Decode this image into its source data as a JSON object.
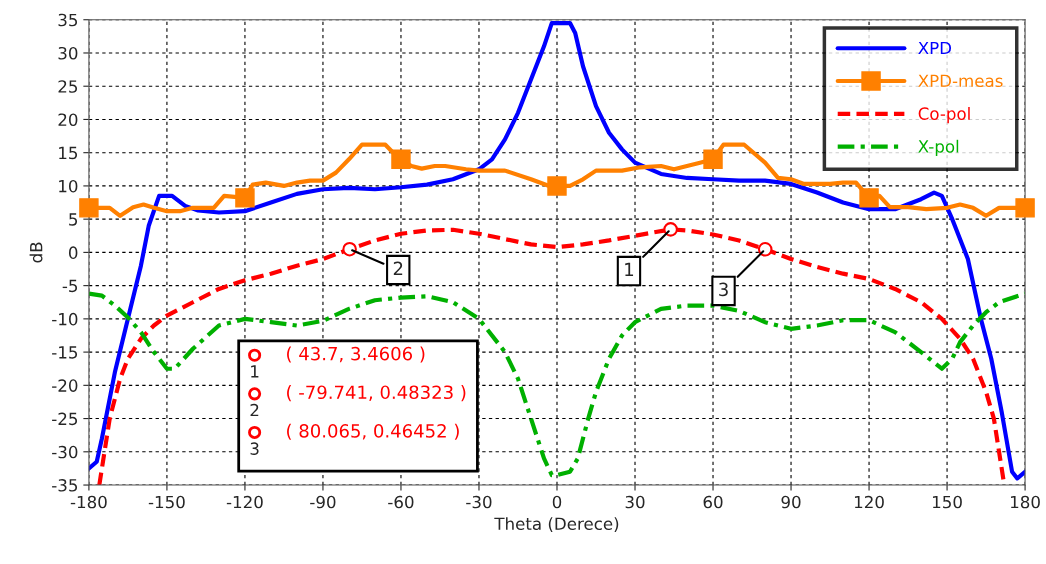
{
  "chart_data": {
    "type": "line",
    "xlabel": "Theta (Derece)",
    "ylabel": "dB",
    "xlim": [
      -180,
      180
    ],
    "xticks": [
      -180,
      -150,
      -120,
      -90,
      -60,
      -30,
      0,
      30,
      60,
      90,
      120,
      150,
      180
    ],
    "ylim": [
      -35,
      35
    ],
    "yticks": [
      -35,
      -30,
      -25,
      -20,
      -15,
      -10,
      -5,
      0,
      5,
      10,
      15,
      20,
      25,
      30,
      35
    ],
    "grid": true,
    "legend": "top right",
    "series": [
      {
        "name": "XPD",
        "color": "#0000ff",
        "line_style": "solid",
        "marker": "none",
        "x": [
          -180,
          -177,
          -175,
          -170,
          -165,
          -160,
          -157,
          -153,
          -148,
          -143,
          -138,
          -130,
          -120,
          -110,
          -100,
          -90,
          -80,
          -70,
          -60,
          -50,
          -40,
          -30,
          -25,
          -20,
          -15,
          -10,
          -5,
          -2,
          5,
          7,
          10,
          15,
          20,
          25,
          30,
          40,
          50,
          60,
          70,
          80,
          90,
          100,
          110,
          120,
          130,
          140,
          145,
          148,
          152,
          158,
          163,
          167,
          171,
          175,
          177,
          180
        ],
        "values": [
          -32.5,
          -31.5,
          -28,
          -18,
          -10,
          -2,
          4,
          8.5,
          8.5,
          7,
          6.3,
          6,
          6.2,
          7.5,
          8.8,
          9.5,
          9.7,
          9.5,
          9.8,
          10.2,
          11,
          12.5,
          14,
          17,
          21,
          26,
          31,
          34.5,
          34.5,
          33,
          28,
          22,
          18,
          15.5,
          13.5,
          11.8,
          11.2,
          11,
          10.8,
          10.8,
          10.3,
          9,
          7.5,
          6.5,
          6.5,
          8,
          9,
          8.5,
          5,
          -1,
          -10,
          -16,
          -24,
          -33,
          -34,
          -33
        ]
      },
      {
        "name": "XPD-meas",
        "color": "#ff8000",
        "line_style": "solid",
        "marker": "none",
        "x": [
          -180,
          -172,
          -168,
          -163,
          -159,
          -155,
          -150,
          -145,
          -140,
          -132,
          -128,
          -120,
          -117,
          -112,
          -105,
          -100,
          -95,
          -90,
          -85,
          -80,
          -75,
          -70,
          -66,
          -63,
          -60,
          -56,
          -52,
          -47,
          -43,
          -35,
          -30,
          -20,
          -10,
          -3,
          0,
          5,
          10,
          15,
          25,
          32,
          40,
          45,
          55,
          60,
          64,
          72,
          80,
          85,
          90,
          95,
          100,
          105,
          110,
          115,
          120,
          124,
          128,
          135,
          142,
          150,
          155,
          160,
          165,
          170,
          180
        ],
        "values": [
          6.7,
          6.7,
          5.5,
          6.8,
          7.2,
          6.7,
          6.2,
          6.2,
          6.7,
          6.7,
          8.5,
          8.2,
          10.2,
          10.5,
          10,
          10.5,
          10.8,
          10.8,
          12,
          14,
          16.2,
          16.2,
          16.2,
          15,
          14,
          13,
          12.6,
          13,
          13,
          12.5,
          12.3,
          12.3,
          11,
          10,
          10,
          10,
          11,
          12.3,
          12.3,
          12.8,
          13,
          12.5,
          13.5,
          14,
          16.2,
          16.2,
          13.5,
          11.2,
          11,
          10.3,
          10.3,
          10.3,
          10.5,
          10.5,
          8.2,
          8.5,
          6.8,
          6.8,
          6.5,
          6.7,
          7.2,
          6.7,
          5.5,
          6.7,
          6.7
        ]
      },
      {
        "type": "scatter",
        "color": "#ff8000",
        "marker": "square",
        "x": [
          -180,
          -120,
          -60,
          0,
          60,
          120,
          180
        ],
        "values": [
          6.7,
          8.2,
          14,
          10,
          14,
          8.2,
          6.7
        ]
      },
      {
        "name": "Co-pol",
        "color": "#ff0000",
        "line_style": "dashed",
        "marker": "none",
        "x": [
          -176,
          -172,
          -168,
          -165,
          -160,
          -155,
          -150,
          -140,
          -130,
          -120,
          -110,
          -100,
          -90,
          -79.741,
          -70,
          -60,
          -50,
          -40,
          -30,
          -20,
          -10,
          0,
          10,
          20,
          30,
          43.7,
          50,
          60,
          70,
          80.065,
          90,
          100,
          110,
          120,
          130,
          140,
          148,
          155,
          160,
          165,
          168,
          172
        ],
        "values": [
          -35,
          -25,
          -19,
          -16,
          -13,
          -11,
          -9.5,
          -7.5,
          -5.5,
          -4.2,
          -3.2,
          -2,
          -1,
          0.48323,
          1.8,
          2.8,
          3.3,
          3.4,
          2.8,
          2,
          1.2,
          0.8,
          1.2,
          1.8,
          2.5,
          3.4606,
          3.3,
          2.7,
          1.8,
          0.46452,
          -1,
          -2.2,
          -3.2,
          -4,
          -5.5,
          -7.5,
          -10,
          -13,
          -16,
          -21,
          -25,
          -35
        ]
      },
      {
        "name": "X-pol",
        "color": "#00b000",
        "line_style": "dashdot",
        "marker": "none",
        "x": [
          -180,
          -175,
          -170,
          -165,
          -160,
          -155,
          -150,
          -147,
          -140,
          -130,
          -120,
          -110,
          -100,
          -90,
          -80,
          -70,
          -60,
          -50,
          -40,
          -30,
          -20,
          -15,
          -10,
          -5,
          -2,
          0,
          5,
          8,
          12,
          15,
          20,
          25,
          30,
          40,
          50,
          60,
          70,
          80,
          90,
          100,
          110,
          120,
          130,
          140,
          148,
          152,
          155,
          160,
          165,
          170,
          180
        ],
        "values": [
          -6.2,
          -6.5,
          -8,
          -9.8,
          -12,
          -15,
          -17.5,
          -17.5,
          -14.5,
          -11,
          -10,
          -10.5,
          -11,
          -10.3,
          -8.5,
          -7.2,
          -6.8,
          -6.6,
          -7.5,
          -10,
          -15,
          -19,
          -25,
          -31,
          -33.5,
          -33.5,
          -33,
          -31,
          -25,
          -21,
          -16,
          -12.5,
          -10.5,
          -8.5,
          -8,
          -8,
          -8.8,
          -10.5,
          -11.5,
          -11,
          -10.2,
          -10.2,
          -12,
          -15,
          -17.5,
          -16,
          -13.5,
          -11,
          -9,
          -7.5,
          -6.2
        ]
      }
    ],
    "annotations": [
      {
        "text": "1",
        "x": 43.7,
        "y": 3.4606
      },
      {
        "text": "2",
        "x": -79.741,
        "y": 0.48323
      },
      {
        "text": "3",
        "x": 80.065,
        "y": 0.46452
      },
      "( 43.7, 3.4606 )",
      "( -79.741, 0.48323 )",
      "( 80.065, 0.46452 )"
    ]
  }
}
